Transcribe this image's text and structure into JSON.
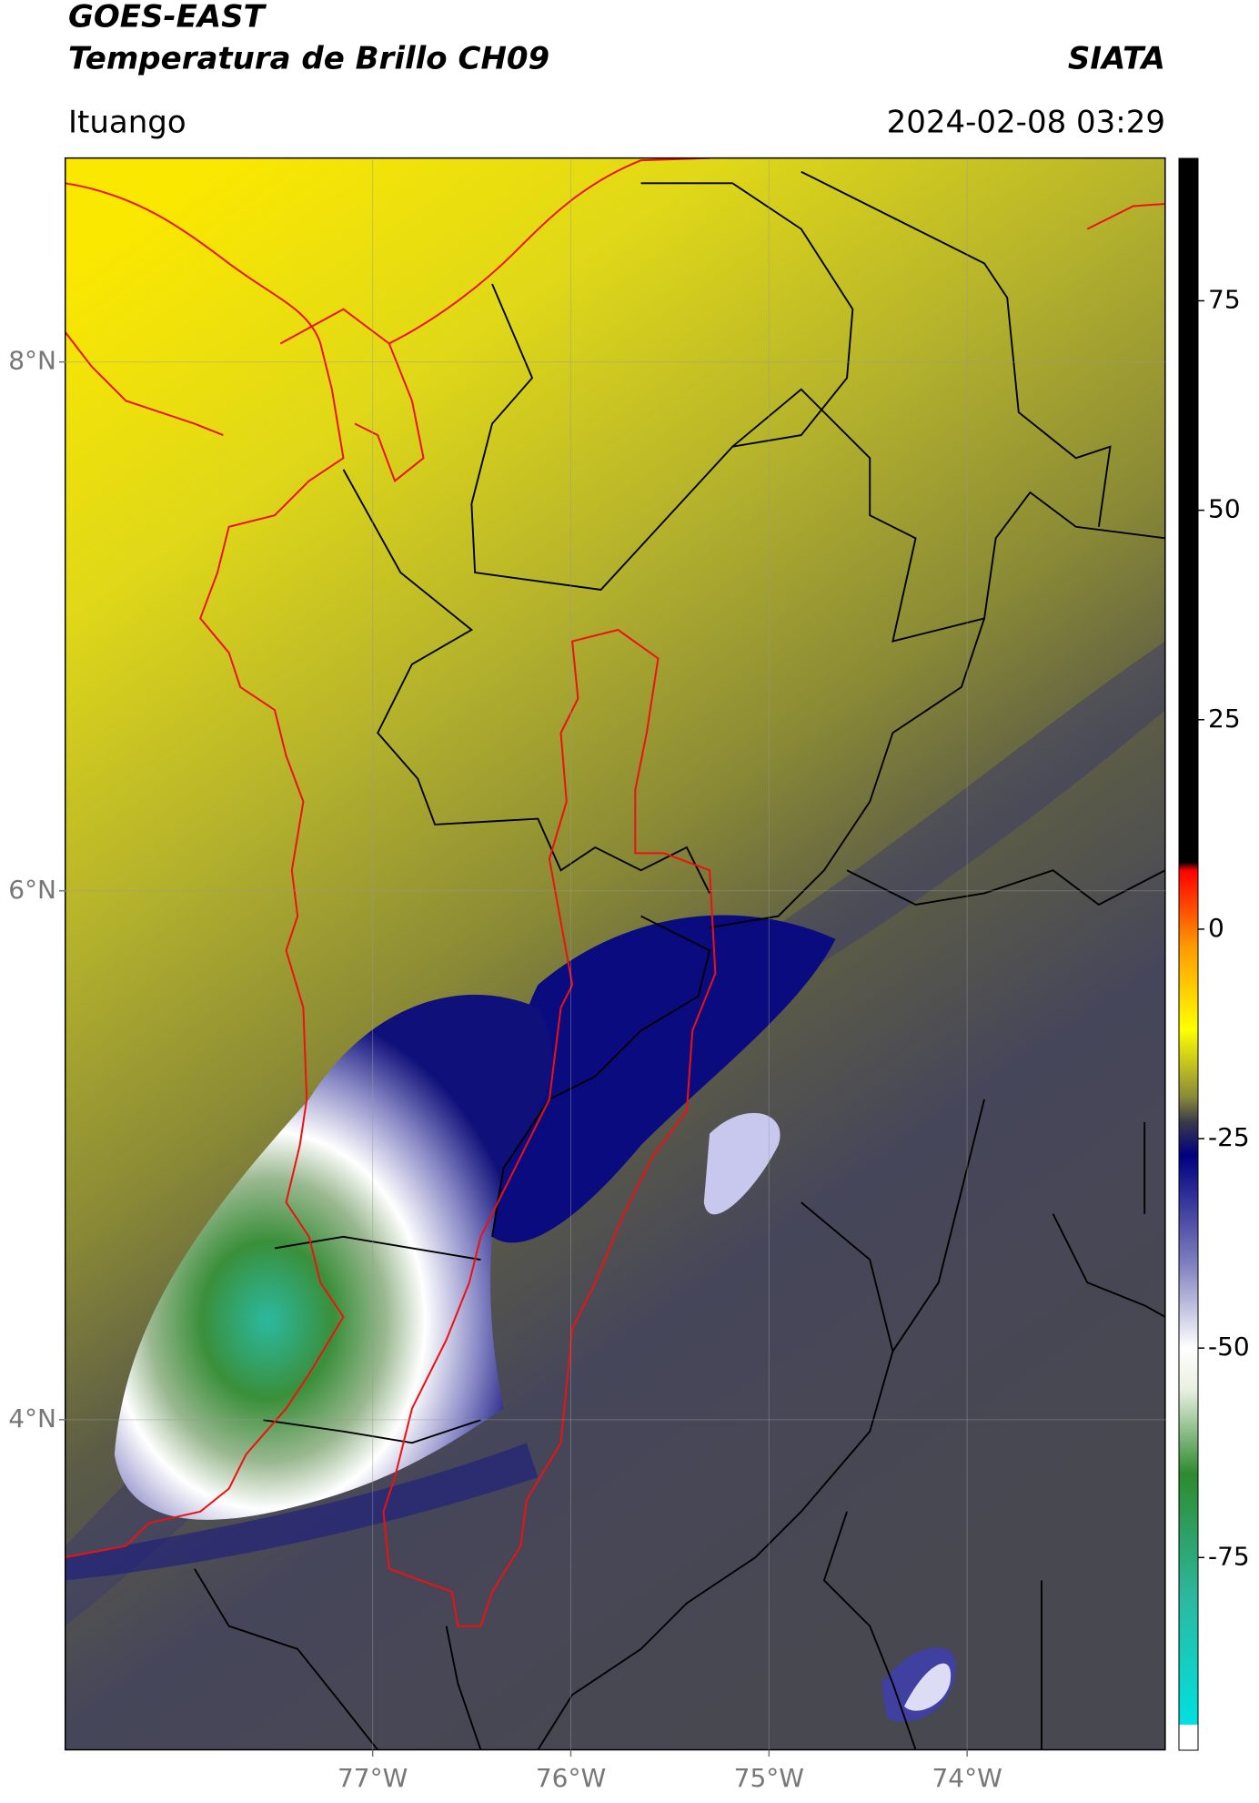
{
  "title": "GOES-EAST",
  "subtitle": "Temperatura de Brillo CH09",
  "source": "SIATA",
  "region": "Ituango",
  "datetime": "2024-02-08 03:29",
  "map": {
    "latlim": [
      2.75,
      8.77
    ],
    "lonlim": [
      -78.55,
      -73.0
    ],
    "latticks": [
      {
        "value": 8,
        "label": "8°N"
      },
      {
        "value": 6,
        "label": "6°N"
      },
      {
        "value": 4,
        "label": "4°N"
      }
    ],
    "lonticks": [
      {
        "value": -77,
        "label": "77°W"
      },
      {
        "value": -76,
        "label": "76°W"
      },
      {
        "value": -75,
        "label": "75°W"
      },
      {
        "value": -74,
        "label": "74°W"
      }
    ],
    "grid": true
  },
  "colorbar": {
    "lim": [
      -98,
      92
    ],
    "ticks": [
      75,
      50,
      25,
      0,
      -25,
      -50,
      -75
    ],
    "stops": [
      {
        "value": -98,
        "color": "#ffffff"
      },
      {
        "value": -95,
        "color": "#ffffff"
      },
      {
        "value": -94.9,
        "color": "#00e0e0"
      },
      {
        "value": -80,
        "color": "#2bb9a0"
      },
      {
        "value": -65,
        "color": "#2f8a2f"
      },
      {
        "value": -55,
        "color": "#e8f0e0"
      },
      {
        "value": -50,
        "color": "#ffffff"
      },
      {
        "value": -40,
        "color": "#8080c0"
      },
      {
        "value": -27,
        "color": "#000080"
      },
      {
        "value": -23,
        "color": "#3a3a4a"
      },
      {
        "value": -20,
        "color": "#8a8a3a"
      },
      {
        "value": -12,
        "color": "#ffff00"
      },
      {
        "value": -2,
        "color": "#ff9900"
      },
      {
        "value": 7,
        "color": "#ff0000"
      },
      {
        "value": 8,
        "color": "#000000"
      },
      {
        "value": 92,
        "color": "#000000"
      }
    ]
  }
}
